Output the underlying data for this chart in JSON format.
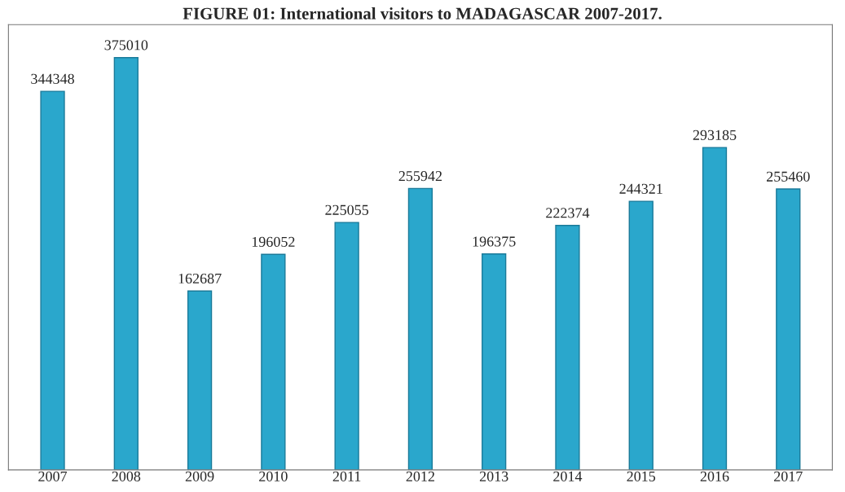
{
  "chart_data": {
    "type": "bar",
    "title": "FIGURE 01: International visitors to MADAGASCAR 2007-2017.",
    "categories": [
      "2007",
      "2008",
      "2009",
      "2010",
      "2011",
      "2012",
      "2013",
      "2014",
      "2015",
      "2016",
      "2017"
    ],
    "values": [
      344348,
      375010,
      162687,
      196052,
      225055,
      255942,
      196375,
      222374,
      244321,
      293185,
      255460
    ],
    "color": "#2aa7cc",
    "data_labels": true,
    "grid": false,
    "legend": false
  }
}
